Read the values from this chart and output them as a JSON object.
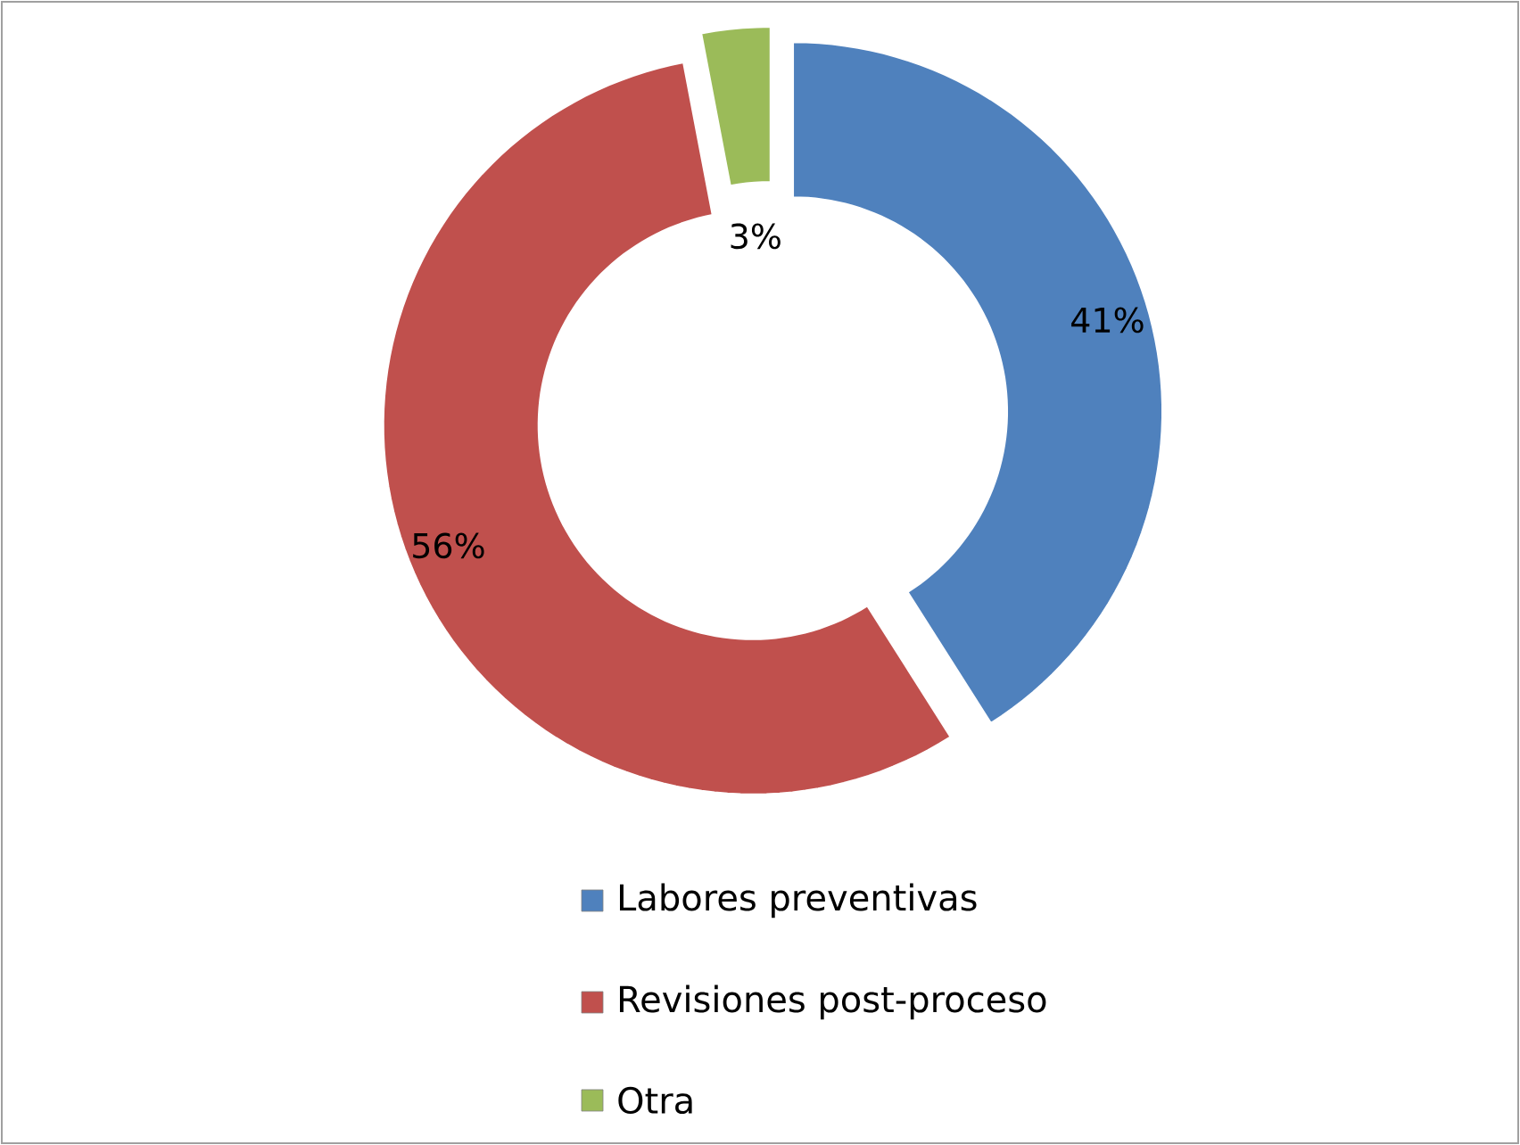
{
  "chart_data": {
    "type": "donut",
    "categories": [
      "Labores preventivas",
      "Revisiones post-proceso",
      "Otra"
    ],
    "values": [
      41,
      56,
      3
    ],
    "value_labels": [
      "41%",
      "56%",
      "3%"
    ],
    "colors": [
      "#4f81bd",
      "#c0504d",
      "#9bbb59"
    ],
    "legend": "bottom"
  }
}
